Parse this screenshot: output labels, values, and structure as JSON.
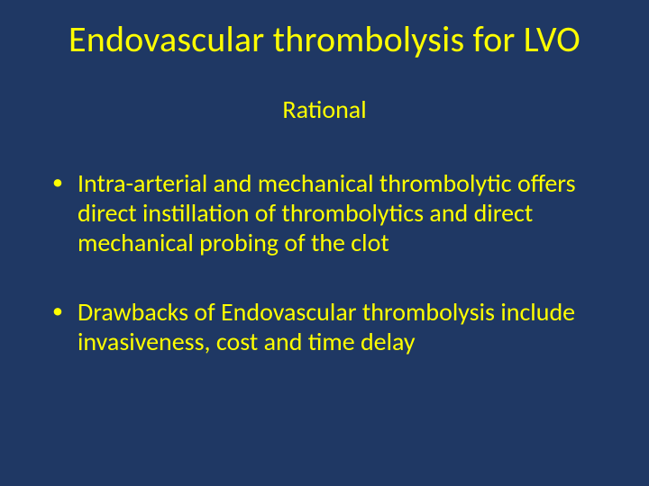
{
  "slide": {
    "background_color": "#1f3864",
    "text_color": "#ffff00",
    "font_family": "Calibri",
    "title": {
      "text": "Endovascular thrombolysis for LVO",
      "fontsize": 40,
      "align": "center"
    },
    "subtitle": {
      "text": "Rational",
      "fontsize": 28,
      "align": "center"
    },
    "bullets": {
      "fontsize": 28,
      "items": [
        "Intra-arterial and mechanical thrombolytic offers direct instillation of thrombolytics and direct mechanical probing of the clot",
        "Drawbacks of Endovascular thrombolysis include invasiveness, cost and time delay"
      ]
    }
  }
}
